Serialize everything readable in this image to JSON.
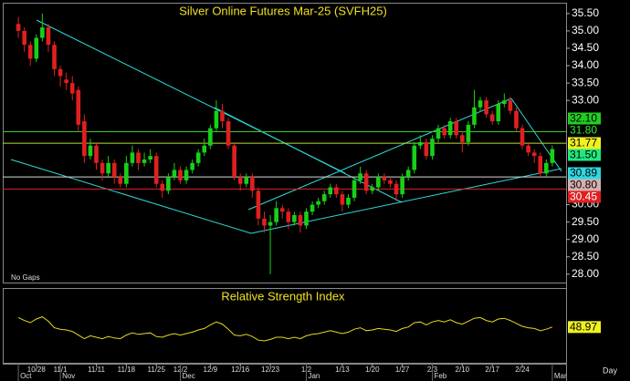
{
  "chart_data": {
    "type": "candlestick",
    "title": "Silver Online Futures Mar-25 (SVFH25)",
    "note": "No Gaps",
    "period": "Day",
    "up_color": "#18d018",
    "down_color": "#e02020",
    "ylim": [
      27.76,
      35.81
    ],
    "xlim": [
      -2.6,
      91.3
    ],
    "yticks": [
      {
        "value": 28,
        "label": "28.00"
      },
      {
        "value": 28.5,
        "label": "28.50"
      },
      {
        "value": 29,
        "label": "29.00"
      },
      {
        "value": 29.5,
        "label": "29.50"
      },
      {
        "value": 30,
        "label": "30.00"
      },
      {
        "value": 33,
        "label": "33.00"
      },
      {
        "value": 33.5,
        "label": "33.50"
      },
      {
        "value": 34,
        "label": "34.00"
      },
      {
        "value": 34.5,
        "label": "34.50"
      },
      {
        "value": 35,
        "label": "35.00"
      },
      {
        "value": 35.5,
        "label": "35.50"
      }
    ],
    "xticks": [
      {
        "value": 3,
        "label": "10/28"
      },
      {
        "value": 7,
        "label": "11/1"
      },
      {
        "value": 13,
        "label": "11/11"
      },
      {
        "value": 18,
        "label": "11/18"
      },
      {
        "value": 23,
        "label": "11/25"
      },
      {
        "value": 27,
        "label": "12/2"
      },
      {
        "value": 32,
        "label": "12/9"
      },
      {
        "value": 37,
        "label": "12/16"
      },
      {
        "value": 42,
        "label": "12/23"
      },
      {
        "value": 48,
        "label": "1/2"
      },
      {
        "value": 54,
        "label": "1/13"
      },
      {
        "value": 59,
        "label": "1/20"
      },
      {
        "value": 64,
        "label": "1/27"
      },
      {
        "value": 69,
        "label": "2/3"
      },
      {
        "value": 74,
        "label": "2/10"
      },
      {
        "value": 79,
        "label": "2/17"
      },
      {
        "value": 84,
        "label": "2/24"
      }
    ],
    "month_ticks": [
      {
        "value": 0,
        "label": "Oct"
      },
      {
        "value": 7,
        "label": "Nov"
      },
      {
        "value": 27,
        "label": "Dec"
      },
      {
        "value": 48,
        "label": "Jan"
      },
      {
        "value": 69,
        "label": "Feb"
      },
      {
        "value": 89,
        "label": "Mar"
      }
    ],
    "price_tags": [
      {
        "value": 32.1,
        "label": "32.10",
        "bg": "#22cc22",
        "fg": "#000000",
        "line": "#33cc33"
      },
      {
        "value": 31.8,
        "label": "31.80",
        "bg": "#000000",
        "fg": "#33ee33",
        "line": null
      },
      {
        "value": 31.77,
        "label": "31.77",
        "bg": "#f0f020",
        "fg": "#000000",
        "line": "#b8e030"
      },
      {
        "value": 31.5,
        "label": "31.50",
        "bg": "#20e880",
        "fg": "#000000",
        "line": null
      },
      {
        "value": 30.89,
        "label": "30.89",
        "bg": "#30d8e0",
        "fg": "#000000",
        "line": null
      },
      {
        "value": 30.8,
        "label": "30.80",
        "bg": "#d8b0b0",
        "fg": "#000000",
        "line": "#d8d8d8"
      },
      {
        "value": 30.45,
        "label": "30.45",
        "bg": "#e02020",
        "fg": "#ffffff",
        "line": "#e02020"
      }
    ],
    "ohlc": [
      [
        35.2,
        35.4,
        34.8,
        35.0
      ],
      [
        35.0,
        35.1,
        34.4,
        34.6
      ],
      [
        34.6,
        34.7,
        34.0,
        34.2
      ],
      [
        34.2,
        34.9,
        34.1,
        34.8
      ],
      [
        34.8,
        35.5,
        34.7,
        35.1
      ],
      [
        35.1,
        35.2,
        34.4,
        34.6
      ],
      [
        34.6,
        34.7,
        33.7,
        33.9
      ],
      [
        33.9,
        34.0,
        33.4,
        33.7
      ],
      [
        33.6,
        33.8,
        33.3,
        33.5
      ],
      [
        33.5,
        33.7,
        33.0,
        33.2
      ],
      [
        33.3,
        33.4,
        32.1,
        32.3
      ],
      [
        32.4,
        32.6,
        31.2,
        31.4
      ],
      [
        31.4,
        31.9,
        31.3,
        31.7
      ],
      [
        31.7,
        31.8,
        31.0,
        31.2
      ],
      [
        31.2,
        31.3,
        30.7,
        30.9
      ],
      [
        30.9,
        31.4,
        30.8,
        31.2
      ],
      [
        31.2,
        31.3,
        30.6,
        30.8
      ],
      [
        30.8,
        30.9,
        30.5,
        30.6
      ],
      [
        30.6,
        31.4,
        30.5,
        31.2
      ],
      [
        31.2,
        31.7,
        31.1,
        31.5
      ],
      [
        31.5,
        31.6,
        31.0,
        31.2
      ],
      [
        31.2,
        31.5,
        31.1,
        31.3
      ],
      [
        31.3,
        31.6,
        31.2,
        31.4
      ],
      [
        31.4,
        31.5,
        30.5,
        30.6
      ],
      [
        30.6,
        30.7,
        30.2,
        30.4
      ],
      [
        30.4,
        30.9,
        30.3,
        30.8
      ],
      [
        30.8,
        31.2,
        30.7,
        31.0
      ],
      [
        31.0,
        31.1,
        30.6,
        30.7
      ],
      [
        30.7,
        31.1,
        30.6,
        31.0
      ],
      [
        31.0,
        31.3,
        30.9,
        31.2
      ],
      [
        31.2,
        31.6,
        31.1,
        31.5
      ],
      [
        31.5,
        31.9,
        31.4,
        31.7
      ],
      [
        31.7,
        32.3,
        31.6,
        32.2
      ],
      [
        32.2,
        33.0,
        32.1,
        32.7
      ],
      [
        32.7,
        32.9,
        32.2,
        32.4
      ],
      [
        32.4,
        32.5,
        31.6,
        31.7
      ],
      [
        31.7,
        31.8,
        30.7,
        30.8
      ],
      [
        30.8,
        30.9,
        30.4,
        30.6
      ],
      [
        30.6,
        30.9,
        30.5,
        30.8
      ],
      [
        30.8,
        30.9,
        30.2,
        30.4
      ],
      [
        30.4,
        30.5,
        29.4,
        29.6
      ],
      [
        29.6,
        29.8,
        29.2,
        29.4
      ],
      [
        29.4,
        29.7,
        28.0,
        29.5
      ],
      [
        29.5,
        30.1,
        29.4,
        29.9
      ],
      [
        29.9,
        30.0,
        29.6,
        29.8
      ],
      [
        29.8,
        29.9,
        29.3,
        29.5
      ],
      [
        29.5,
        29.8,
        29.4,
        29.7
      ],
      [
        29.7,
        29.8,
        29.2,
        29.4
      ],
      [
        29.4,
        29.9,
        29.3,
        29.8
      ],
      [
        29.8,
        30.1,
        29.7,
        30.0
      ],
      [
        30.0,
        30.2,
        29.9,
        30.1
      ],
      [
        30.1,
        30.4,
        30.0,
        30.3
      ],
      [
        30.3,
        30.6,
        30.2,
        30.5
      ],
      [
        30.5,
        30.6,
        30.2,
        30.3
      ],
      [
        30.3,
        30.4,
        29.8,
        30.0
      ],
      [
        30.0,
        30.3,
        29.9,
        30.2
      ],
      [
        30.2,
        30.8,
        30.1,
        30.7
      ],
      [
        30.7,
        31.1,
        30.6,
        30.9
      ],
      [
        30.9,
        31.0,
        30.3,
        30.4
      ],
      [
        30.4,
        30.6,
        30.3,
        30.5
      ],
      [
        30.5,
        30.9,
        30.4,
        30.8
      ],
      [
        30.8,
        30.9,
        30.6,
        30.7
      ],
      [
        30.7,
        30.8,
        30.5,
        30.6
      ],
      [
        30.6,
        30.7,
        30.1,
        30.3
      ],
      [
        30.3,
        30.9,
        30.2,
        30.8
      ],
      [
        30.8,
        31.1,
        30.7,
        31.0
      ],
      [
        31.0,
        31.8,
        30.9,
        31.7
      ],
      [
        31.7,
        32.0,
        31.6,
        31.8
      ],
      [
        31.8,
        31.9,
        31.3,
        31.4
      ],
      [
        31.4,
        32.0,
        31.3,
        31.9
      ],
      [
        31.9,
        32.3,
        31.8,
        32.2
      ],
      [
        32.2,
        32.3,
        31.9,
        32.0
      ],
      [
        32.0,
        32.5,
        31.9,
        32.4
      ],
      [
        32.4,
        32.5,
        31.9,
        32.0
      ],
      [
        32.0,
        32.1,
        31.5,
        31.8
      ],
      [
        31.8,
        32.4,
        31.7,
        32.3
      ],
      [
        32.3,
        33.3,
        32.2,
        32.8
      ],
      [
        32.8,
        33.1,
        32.7,
        33.0
      ],
      [
        33.0,
        33.1,
        32.5,
        32.6
      ],
      [
        32.6,
        32.7,
        32.3,
        32.4
      ],
      [
        32.4,
        33.0,
        32.3,
        32.9
      ],
      [
        32.9,
        33.2,
        32.8,
        33.0
      ],
      [
        33.0,
        33.1,
        32.6,
        32.7
      ],
      [
        32.7,
        32.8,
        32.1,
        32.2
      ],
      [
        32.2,
        32.3,
        31.6,
        31.7
      ],
      [
        31.7,
        31.8,
        31.4,
        31.5
      ],
      [
        31.5,
        31.6,
        31.2,
        31.4
      ],
      [
        31.4,
        31.5,
        30.8,
        30.9
      ],
      [
        30.9,
        31.3,
        30.8,
        31.2
      ],
      [
        31.2,
        31.7,
        31.1,
        31.6
      ]
    ],
    "rsi": {
      "title": "Relative Strength Index",
      "color": "#e8d820",
      "label_bg": "#f0f020",
      "ylim": [
        0,
        100
      ],
      "values": [
        62,
        58,
        55,
        60,
        63,
        57,
        48,
        46,
        45,
        43,
        38,
        33,
        37,
        35,
        33,
        36,
        34,
        33,
        38,
        41,
        39,
        40,
        41,
        36,
        35,
        38,
        40,
        38,
        40,
        42,
        45,
        47,
        52,
        56,
        53,
        46,
        38,
        37,
        39,
        36,
        31,
        30,
        32,
        35,
        35,
        33,
        35,
        33,
        37,
        39,
        40,
        42,
        44,
        42,
        40,
        42,
        46,
        48,
        44,
        45,
        47,
        46,
        45,
        43,
        47,
        49,
        55,
        56,
        52,
        56,
        58,
        56,
        59,
        55,
        53,
        57,
        61,
        62,
        58,
        56,
        60,
        61,
        58,
        54,
        50,
        48,
        47,
        44,
        46,
        48.97
      ]
    }
  }
}
